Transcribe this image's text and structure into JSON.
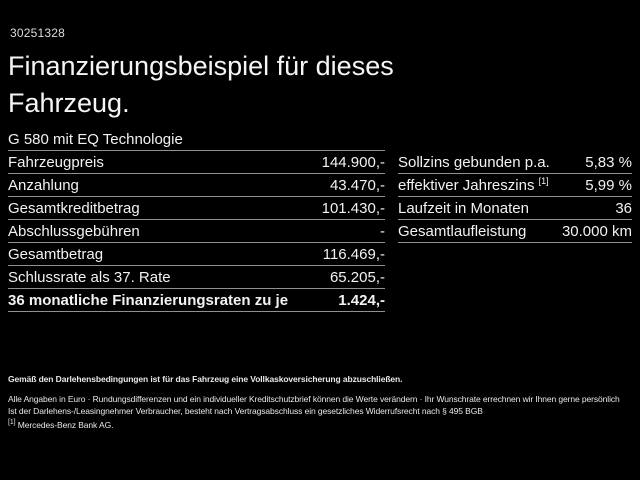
{
  "page": {
    "colors": {
      "background": "#000000",
      "text": "#f2f2f2",
      "divider": "#909090"
    }
  },
  "header": {
    "reference_number": "30251328",
    "title_line1": "Finanzierungsbeispiel für dieses",
    "title_line2": "Fahrzeug."
  },
  "left_table": {
    "header": "G 580 mit EQ Technologie",
    "rows": [
      {
        "label": "Fahrzeugpreis",
        "value": "144.900,-"
      },
      {
        "label": "Anzahlung",
        "value": "43.470,-"
      },
      {
        "label": "Gesamtkreditbetrag",
        "value": "101.430,-"
      },
      {
        "label": "Abschlussgebühren",
        "value": "-"
      },
      {
        "label": "Gesamtbetrag",
        "value": "116.469,-"
      },
      {
        "label": "Schlussrate als 37. Rate",
        "value": "65.205,-"
      },
      {
        "label": "36 monatliche Finanzierungsraten zu je",
        "value": "1.424,-"
      }
    ]
  },
  "right_table": {
    "rows": [
      {
        "label": "Sollzins gebunden p.a.",
        "footnote": "",
        "value": "5,83 %"
      },
      {
        "label": "effektiver Jahreszins",
        "footnote": "[1]",
        "value": "5,99 %"
      },
      {
        "label": "Laufzeit in Monaten",
        "footnote": "",
        "value": "36"
      },
      {
        "label": "Gesamtlaufleistung",
        "footnote": "",
        "value": "30.000 km"
      }
    ]
  },
  "footer": {
    "line_bold": "Gemäß den Darlehensbedingungen ist für das Fahrzeug eine Vollkaskoversicherung abzuschließen.",
    "line2": "Alle Angaben in Euro · Rundungsdifferenzen und ein individueller Kreditschutzbrief können die Werte verändern · Ihr Wunschrate errechnen wir Ihnen gerne persönlich",
    "line3": "Ist der Darlehens-/Leasingnehmer Verbraucher, besteht nach Vertragsabschluss ein gesetzliches Widerrufsrecht nach § 495 BGB",
    "footnote_marker": "[1]",
    "footnote_text": "Mercedes-Benz Bank AG."
  }
}
